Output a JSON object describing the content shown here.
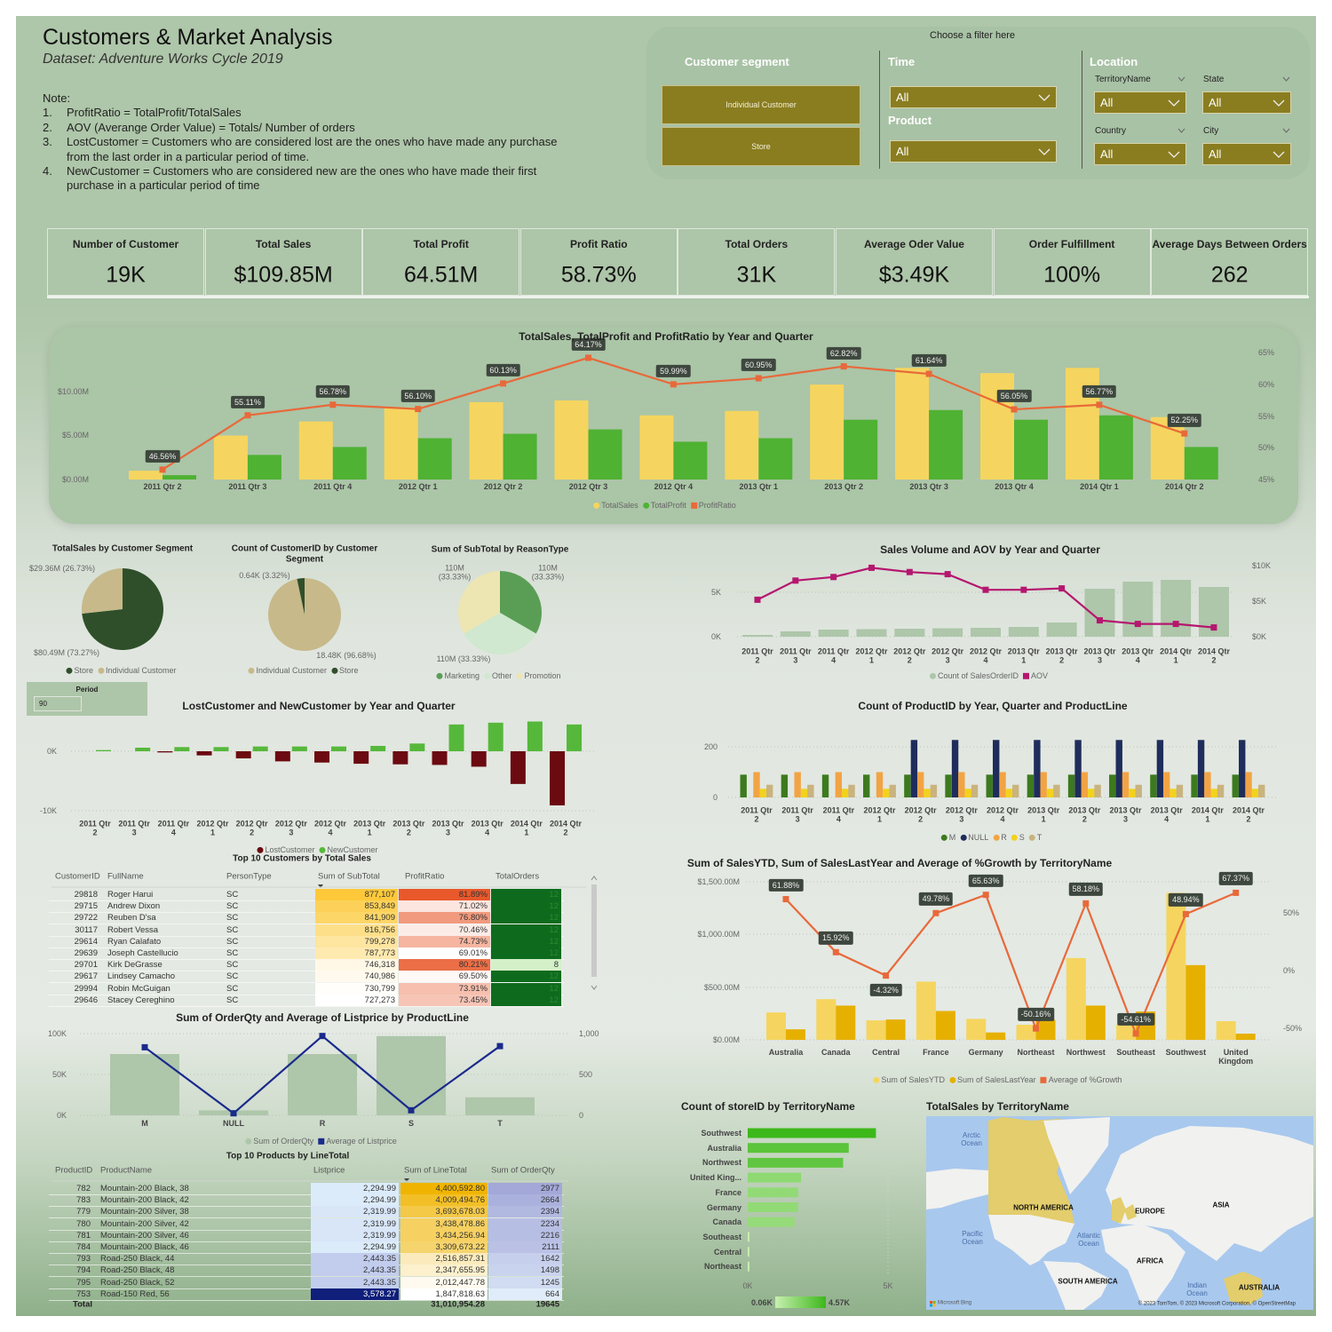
{
  "header": {
    "title": "Customers & Market Analysis",
    "subtitle": "Dataset: Adventure Works Cycle 2019",
    "note_label": "Note:",
    "notes": [
      {
        "n": "1.",
        "text": "ProfitRatio = TotalProfit/TotalSales"
      },
      {
        "n": "2.",
        "text": "AOV (Averange Order Value) = Totals/ Number of orders"
      },
      {
        "n": "3.",
        "text": "LostCustomer = Customers who are considered lost are the ones who have made any purchase from the last order in a particular period of time."
      },
      {
        "n": "4.",
        "text": "NewCustomer = Customers who are considered new are the ones who have made their first purchase in a particular period of time"
      }
    ]
  },
  "filters": {
    "caption": "Choose a filter here",
    "customer_segment": {
      "label": "Customer segment",
      "options": [
        "Individual Customer",
        "Store"
      ]
    },
    "time": {
      "label": "Time",
      "value": "All"
    },
    "product": {
      "label": "Product",
      "value": "All"
    },
    "location": {
      "label": "Location",
      "territory": {
        "label": "TerritoryName",
        "value": "All"
      },
      "state": {
        "label": "State",
        "value": "All"
      },
      "country": {
        "label": "Country",
        "value": "All"
      },
      "city": {
        "label": "City",
        "value": "All"
      }
    }
  },
  "period": {
    "label": "Period",
    "value": "90"
  },
  "kpis": [
    {
      "label": "Number of Customer",
      "value": "19K"
    },
    {
      "label": "Total Sales",
      "value": "$109.85M"
    },
    {
      "label": "Total Profit",
      "value": "64.51M"
    },
    {
      "label": "Profit Ratio",
      "value": "58.73%"
    },
    {
      "label": "Total Orders",
      "value": "31K"
    },
    {
      "label": "Average Oder Value",
      "value": "$3.49K"
    },
    {
      "label": "Order Fulfillment",
      "value": "100%"
    },
    {
      "label": "Average Days Between Orders",
      "value": "262"
    }
  ],
  "colors": {
    "total_sales": "#f5d55f",
    "total_profit": "#4fb233",
    "profit_ratio": "#e8693a",
    "volume": "#aec6aa",
    "aov": "#b5176f",
    "lost": "#6b0a10",
    "new": "#56b83b",
    "M": "#3d7a1e",
    "NULL": "#1f2d5c",
    "R": "#f2a444",
    "S": "#f2d21c",
    "T": "#c9b37f",
    "sales_ytd": "#f5d55f",
    "sales_ly": "#e6b000",
    "growth": "#e8693a",
    "listprice": "#1a2a8c",
    "store_max": "#3cb81a",
    "store_min": "#c8efb0",
    "ocean": "#a8c8ee",
    "land": "#f1f1ef",
    "highlight": "#e3cd6c"
  },
  "chart_data": [
    {
      "type": "bar+line",
      "title": "TotalSales, TotalProfit and ProfitRatio by Year and Quarter",
      "categories": [
        "2011 Qtr 2",
        "2011 Qtr 3",
        "2011 Qtr 4",
        "2012 Qtr 1",
        "2012 Qtr 2",
        "2012 Qtr 3",
        "2012 Qtr 4",
        "2013 Qtr 1",
        "2013 Qtr 2",
        "2013 Qtr 3",
        "2013 Qtr 4",
        "2014 Qtr 1",
        "2014 Qtr 2"
      ],
      "series": [
        {
          "name": "TotalSales",
          "unit": "$M",
          "values": [
            1.0,
            5.0,
            6.6,
            8.2,
            8.8,
            9.0,
            7.3,
            7.8,
            10.8,
            12.7,
            12.1,
            12.7,
            7.1
          ]
        },
        {
          "name": "TotalProfit",
          "unit": "$M",
          "values": [
            0.5,
            2.8,
            3.7,
            4.7,
            5.2,
            5.7,
            4.3,
            4.7,
            6.8,
            7.9,
            6.8,
            7.3,
            3.7
          ]
        },
        {
          "name": "ProfitRatio",
          "unit": "%",
          "values": [
            46.56,
            55.11,
            56.78,
            56.1,
            60.13,
            64.17,
            59.99,
            60.95,
            62.82,
            61.64,
            56.05,
            56.77,
            52.25
          ],
          "labels": [
            "46.56%",
            "55.11%",
            "56.78%",
            "56.10%",
            "60.13%",
            "64.17%",
            "59.99%",
            "60.95%",
            "62.82%",
            "61.64%",
            "56.05%",
            "56.77%",
            "52.25%"
          ]
        }
      ],
      "y_ticks": [
        "$0.00M",
        "$5.00M",
        "$10.00M"
      ],
      "y2_ticks": [
        "45%",
        "50%",
        "55%",
        "60%",
        "65%"
      ],
      "ylim": [
        0,
        14.5
      ],
      "y2lim": [
        45,
        65
      ],
      "legend": "bottom"
    },
    {
      "type": "pie",
      "title": "TotalSales by Customer Segment",
      "slices": [
        {
          "name": "Store",
          "value": 80.49,
          "label": "$80.49M (73.27%)",
          "color": "#2f4f2a"
        },
        {
          "name": "Individual Customer",
          "value": 29.36,
          "label": "$29.36M (26.73%)",
          "color": "#c7b98a"
        }
      ]
    },
    {
      "type": "pie",
      "title": "Count of CustomerID by Customer Segment",
      "slices": [
        {
          "name": "Individual Customer",
          "value": 18.48,
          "label": "18.48K (96.68%)",
          "color": "#c7b98a"
        },
        {
          "name": "Store",
          "value": 0.64,
          "label": "0.64K (3.32%)",
          "color": "#2f4f2a"
        }
      ]
    },
    {
      "type": "pie",
      "title": "Sum of SubTotal by ReasonType",
      "slices": [
        {
          "name": "Marketing",
          "value": 110,
          "label": "110M (33.33%)",
          "color": "#5a9e56"
        },
        {
          "name": "Other",
          "value": 110,
          "label": "110M (33.33%)",
          "color": "#cfe8cf"
        },
        {
          "name": "Promotion",
          "value": 110,
          "label": "110M (33.33%)",
          "color": "#ede6b2"
        }
      ]
    },
    {
      "type": "bar+line",
      "title": "Sales Volume and AOV by Year and Quarter",
      "categories": [
        "2011 Qtr 2",
        "2011 Qtr 3",
        "2011 Qtr 4",
        "2012 Qtr 1",
        "2012 Qtr 2",
        "2012 Qtr 3",
        "2012 Qtr 4",
        "2013 Qtr 1",
        "2013 Qtr 2",
        "2013 Qtr 3",
        "2013 Qtr 4",
        "2014 Qtr 1",
        "2014 Qtr 2"
      ],
      "series": [
        {
          "name": "Count of SalesOrderID",
          "unit": "K",
          "values": [
            0.2,
            0.6,
            0.8,
            0.85,
            0.9,
            0.95,
            1.0,
            1.1,
            1.6,
            5.4,
            6.2,
            6.4,
            5.6
          ]
        },
        {
          "name": "AOV",
          "unit": "$K",
          "values": [
            5.2,
            7.9,
            8.4,
            9.7,
            9.1,
            8.8,
            6.6,
            6.6,
            6.8,
            2.3,
            1.8,
            1.8,
            1.3
          ]
        }
      ],
      "y_ticks": [
        "0K",
        "5K"
      ],
      "y2_ticks": [
        "$0K",
        "$5K",
        "$10K"
      ]
    },
    {
      "type": "bar",
      "title": "LostCustomer and NewCustomer by Year and Quarter",
      "categories": [
        "2011 Qtr 2",
        "2011 Qtr 3",
        "2011 Qtr 4",
        "2012 Qtr 1",
        "2012 Qtr 2",
        "2012 Qtr 3",
        "2012 Qtr 4",
        "2013 Qtr 1",
        "2013 Qtr 2",
        "2013 Qtr 3",
        "2013 Qtr 4",
        "2014 Qtr 1",
        "2014 Qtr 2"
      ],
      "series": [
        {
          "name": "LostCustomer",
          "unit": "K",
          "values": [
            0,
            0,
            -0.2,
            -0.7,
            -1.2,
            -1.7,
            -1.9,
            -2.1,
            -2.2,
            -2.3,
            -2.6,
            -5.5,
            -9.1
          ]
        },
        {
          "name": "NewCustomer",
          "unit": "K",
          "values": [
            0.2,
            0.6,
            0.7,
            0.7,
            0.8,
            0.8,
            0.8,
            0.9,
            1.3,
            4.5,
            4.8,
            5.0,
            4.5
          ]
        }
      ],
      "y_ticks": [
        "0K",
        "-10K"
      ]
    },
    {
      "type": "bar",
      "title": "Count of ProductID by Year, Quarter and ProductLine",
      "categories": [
        "2011 Qtr 2",
        "2011 Qtr 3",
        "2011 Qtr 4",
        "2012 Qtr 1",
        "2012 Qtr 2",
        "2012 Qtr 3",
        "2012 Qtr 4",
        "2013 Qtr 1",
        "2013 Qtr 2",
        "2013 Qtr 3",
        "2013 Qtr 4",
        "2014 Qtr 1",
        "2014 Qtr 2"
      ],
      "series": [
        {
          "name": "M",
          "values": [
            90,
            90,
            90,
            90,
            90,
            90,
            90,
            90,
            90,
            90,
            90,
            90,
            90
          ]
        },
        {
          "name": "NULL",
          "values": [
            null,
            null,
            null,
            null,
            227,
            227,
            227,
            227,
            227,
            227,
            227,
            227,
            227
          ]
        },
        {
          "name": "R",
          "values": [
            100,
            100,
            100,
            100,
            100,
            100,
            100,
            100,
            100,
            100,
            100,
            100,
            100
          ]
        },
        {
          "name": "S",
          "values": [
            34,
            34,
            34,
            34,
            34,
            34,
            34,
            34,
            34,
            34,
            34,
            34,
            34
          ]
        },
        {
          "name": "T",
          "values": [
            50,
            50,
            50,
            50,
            50,
            50,
            50,
            50,
            50,
            50,
            50,
            50,
            50
          ]
        }
      ],
      "y_ticks": [
        "0",
        "200"
      ]
    },
    {
      "type": "bar+line",
      "title": "Sum of OrderQty and Average of Listprice by ProductLine",
      "categories": [
        "M",
        "NULL",
        "R",
        "S",
        "T"
      ],
      "series": [
        {
          "name": "Sum of OrderQty",
          "unit": "K",
          "values": [
            75,
            6,
            75,
            97,
            22
          ]
        },
        {
          "name": "Average of Listprice",
          "values": [
            833,
            25,
            971,
            62,
            847
          ]
        }
      ],
      "y_ticks": [
        "0K",
        "50K",
        "100K"
      ],
      "y2_ticks": [
        "0",
        "500",
        "1,000"
      ]
    },
    {
      "type": "bar+line",
      "title": "Sum of SalesYTD, Sum of SalesLastYear and Average of %Growth by TerritoryName",
      "categories": [
        "Australia",
        "Canada",
        "Central",
        "France",
        "Germany",
        "Northeast",
        "Northwest",
        "Southeast",
        "Southwest",
        "United Kingdom"
      ],
      "series": [
        {
          "name": "Sum of SalesYTD",
          "unit": "$M",
          "values": [
            260,
            386,
            185,
            552,
            199,
            143,
            776,
            146,
            1395,
            177
          ]
        },
        {
          "name": "Sum of SalesLastYear",
          "unit": "$M",
          "values": [
            100,
            325,
            193,
            274,
            70,
            190,
            325,
            269,
            709,
            59
          ]
        },
        {
          "name": "Average of %Growth",
          "unit": "%",
          "values": [
            61.88,
            15.92,
            -4.32,
            49.78,
            65.63,
            -50.16,
            58.18,
            -54.61,
            48.94,
            67.37
          ],
          "labels": [
            "61.88%",
            "15.92%",
            "-4.32%",
            "49.78%",
            "65.63%",
            "-50.16%",
            "58.18%",
            "-54.61%",
            "48.94%",
            "67.37%"
          ]
        }
      ],
      "y_ticks": [
        "$0.00M",
        "$500.00M",
        "$1,000.00M",
        "$1,500.00M"
      ],
      "y2_ticks": [
        "-50%",
        "0%",
        "50%"
      ]
    },
    {
      "type": "bar",
      "orientation": "horizontal",
      "title": "Count of storeID by TerritoryName",
      "categories": [
        "Southwest",
        "Australia",
        "Northwest",
        "United King...",
        "France",
        "Germany",
        "Canada",
        "Southeast",
        "Central",
        "Northeast"
      ],
      "values": [
        4.57,
        3.6,
        3.4,
        1.9,
        1.8,
        1.8,
        1.67,
        0.06,
        0.06,
        0.06
      ],
      "unit": "K",
      "x_ticks": [
        "0K",
        "5K"
      ],
      "color_scale": {
        "min": "0.06K",
        "max": "4.57K"
      }
    }
  ],
  "map": {
    "title": "TotalSales by TerritoryName",
    "labels": {
      "arctic": "Arctic Ocean",
      "north_america": "NORTH AMERICA",
      "europe": "EUROPE",
      "asia": "ASIA",
      "pacific": "Pacific Ocean",
      "atlantic": "Atlantic Ocean",
      "africa": "AFRICA",
      "south_america": "SOUTH AMERICA",
      "indian": "Indian Ocean",
      "australia": "AUSTRALIA"
    },
    "provider": "Microsoft Bing",
    "attribution": "© 2023 TomTom, © 2023 Microsoft Corporation, © OpenStreetMap"
  },
  "top_customers": {
    "title": "Top 10 Customers by Total Sales",
    "columns": [
      "CustomerID",
      "FullName",
      "PersonType",
      "Sum of SubTotal",
      "ProfitRatio",
      "TotalOrders"
    ],
    "rows": [
      [
        "29818",
        "Roger Harui",
        "SC",
        "877,107",
        "81.89%",
        "12"
      ],
      [
        "29715",
        "Andrew Dixon",
        "SC",
        "853,849",
        "71.02%",
        "12"
      ],
      [
        "29722",
        "Reuben D'sa",
        "SC",
        "841,909",
        "76.80%",
        "12"
      ],
      [
        "30117",
        "Robert Vessa",
        "SC",
        "816,756",
        "70.46%",
        "12"
      ],
      [
        "29614",
        "Ryan Calafato",
        "SC",
        "799,278",
        "74.73%",
        "12"
      ],
      [
        "29639",
        "Joseph Castellucio",
        "SC",
        "787,773",
        "69.01%",
        "12"
      ],
      [
        "29701",
        "Kirk DeGrasse",
        "SC",
        "746,318",
        "80.21%",
        "8"
      ],
      [
        "29617",
        "Lindsey Camacho",
        "SC",
        "740,986",
        "69.50%",
        "12"
      ],
      [
        "29994",
        "Robin McGuigan",
        "SC",
        "730,799",
        "73.91%",
        "12"
      ],
      [
        "29646",
        "Stacey Cereghino",
        "SC",
        "727,273",
        "73.45%",
        "12"
      ]
    ]
  },
  "top_products": {
    "title": "Top 10 Products by LineTotal",
    "columns": [
      "ProductID",
      "ProductName",
      "Listprice",
      "Sum of LineTotal",
      "Sum of OrderQty"
    ],
    "rows": [
      [
        "782",
        "Mountain-200 Black, 38",
        "2,294.99",
        "4,400,592.80",
        "2977"
      ],
      [
        "783",
        "Mountain-200 Black, 42",
        "2,294.99",
        "4,009,494.76",
        "2664"
      ],
      [
        "779",
        "Mountain-200 Silver, 38",
        "2,319.99",
        "3,693,678.03",
        "2394"
      ],
      [
        "780",
        "Mountain-200 Silver, 42",
        "2,319.99",
        "3,438,478.86",
        "2234"
      ],
      [
        "781",
        "Mountain-200 Silver, 46",
        "2,319.99",
        "3,434,256.94",
        "2216"
      ],
      [
        "784",
        "Mountain-200 Black, 46",
        "2,294.99",
        "3,309,673.22",
        "2111"
      ],
      [
        "793",
        "Road-250 Black, 44",
        "2,443.35",
        "2,516,857.31",
        "1642"
      ],
      [
        "794",
        "Road-250 Black, 48",
        "2,443.35",
        "2,347,655.95",
        "1498"
      ],
      [
        "795",
        "Road-250 Black, 52",
        "2,443.35",
        "2,012,447.78",
        "1245"
      ],
      [
        "753",
        "Road-150 Red, 56",
        "3,578.27",
        "1,847,818.63",
        "664"
      ]
    ],
    "total": {
      "label": "Total",
      "line_total": "31,010,954.28",
      "order_qty": "19645"
    }
  }
}
